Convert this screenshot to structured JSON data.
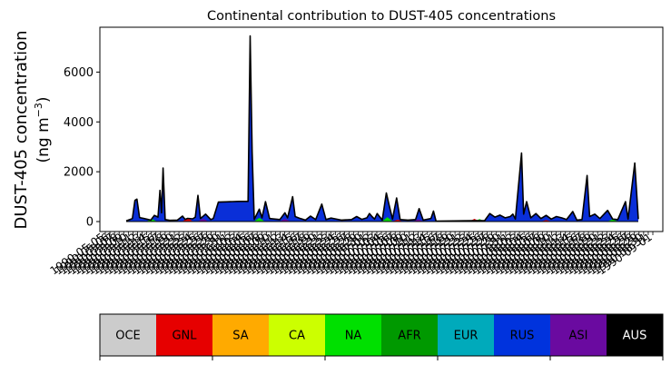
{
  "chart_data": [
    {
      "type": "area",
      "title": "Continental contribution to DUST-405 concentrations",
      "ylabel_line1": "DUST-405 concentration",
      "ylabel_line2_prefix": "(ng m",
      "ylabel_line2_exp": "−3",
      "ylabel_line2_suffix": ")",
      "ylim": [
        -400,
        7800
      ],
      "y_ticks": [
        0,
        2000,
        4000,
        6000
      ],
      "y_tick_labels": [
        "0",
        "2000",
        "4000",
        "6000"
      ],
      "x_tick_count": 120,
      "x_tick_labels": [
        "1990-05-05",
        "1990-05-06",
        "1990-05-07",
        "1990-05-08",
        "1990-05-09",
        "1990-05-10",
        "1990-05-11",
        "1990-05-12",
        "1990-05-13",
        "1990-05-14",
        "1990-05-15",
        "1990-05-16",
        "1990-05-17",
        "1990-05-18",
        "1990-05-19",
        "1990-05-20",
        "1990-05-21",
        "1990-05-22",
        "1990-05-23",
        "1990-05-24",
        "1990-05-25",
        "1990-05-26",
        "1990-05-27",
        "1990-05-28",
        "1990-05-29",
        "1990-05-30",
        "1990-05-31",
        "1990-06-01",
        "1990-06-02",
        "1990-06-03",
        "1990-06-04",
        "1990-06-05",
        "1990-06-06",
        "1990-06-07",
        "1990-06-08",
        "1990-06-09",
        "1990-06-10",
        "1990-06-11",
        "1990-06-12",
        "1990-06-13",
        "1990-06-14",
        "1990-06-15",
        "1990-06-16",
        "1990-06-17",
        "1990-06-18",
        "1990-06-19",
        "1990-06-20",
        "1990-06-21",
        "1990-06-22",
        "1990-06-23",
        "1990-06-24",
        "1990-06-25",
        "1990-06-26",
        "1990-06-27",
        "1990-06-28",
        "1990-06-29",
        "1990-06-30",
        "1990-07-01",
        "1990-07-02",
        "1990-07-03",
        "1990-07-04",
        "1990-07-05",
        "1990-07-06",
        "1990-07-07",
        "1990-07-08",
        "1990-07-09",
        "1990-07-10",
        "1990-07-11",
        "1990-07-12",
        "1990-07-13",
        "1990-07-14",
        "1990-07-15",
        "1990-07-16",
        "1990-07-17",
        "1990-07-18",
        "1990-07-19",
        "1990-07-20",
        "1990-07-21",
        "1990-07-22",
        "1990-07-23",
        "1990-07-24",
        "1990-07-25",
        "1990-07-26",
        "1990-07-27",
        "1990-07-28",
        "1990-07-29",
        "1990-07-30",
        "1990-07-31",
        "1990-08-01",
        "1990-08-02",
        "1990-08-03",
        "1990-08-04",
        "1990-08-05",
        "1990-08-06",
        "1990-08-07",
        "1990-08-08",
        "1990-08-09",
        "1990-08-10",
        "1990-08-11",
        "1990-08-12",
        "1990-08-13",
        "1990-08-14",
        "1990-08-15",
        "1990-08-16",
        "1990-08-17",
        "1990-08-18",
        "1990-08-19",
        "1990-08-20",
        "1990-08-21",
        "1990-08-22",
        "1990-08-23",
        "1990-08-24",
        "1990-08-25",
        "1990-08-26",
        "1990-08-27",
        "1990-08-28",
        "1990-08-29",
        "1990-08-30",
        "1990-08-31",
        "1990-09-01"
      ],
      "grid": false,
      "peaks": [
        {
          "t": 0.0,
          "v": 30
        },
        {
          "t": 0.012,
          "v": 120
        },
        {
          "t": 0.017,
          "v": 850
        },
        {
          "t": 0.021,
          "v": 900
        },
        {
          "t": 0.026,
          "v": 160
        },
        {
          "t": 0.035,
          "v": 120
        },
        {
          "t": 0.048,
          "v": 60
        },
        {
          "t": 0.055,
          "v": 250
        },
        {
          "t": 0.062,
          "v": 180
        },
        {
          "t": 0.066,
          "v": 1250
        },
        {
          "t": 0.069,
          "v": 350
        },
        {
          "t": 0.072,
          "v": 2150
        },
        {
          "t": 0.076,
          "v": 80
        },
        {
          "t": 0.085,
          "v": 50
        },
        {
          "t": 0.1,
          "v": 60
        },
        {
          "t": 0.11,
          "v": 220
        },
        {
          "t": 0.115,
          "v": 90
        },
        {
          "t": 0.12,
          "v": 130
        },
        {
          "t": 0.13,
          "v": 110
        },
        {
          "t": 0.135,
          "v": 180
        },
        {
          "t": 0.14,
          "v": 1050
        },
        {
          "t": 0.145,
          "v": 120
        },
        {
          "t": 0.155,
          "v": 300
        },
        {
          "t": 0.165,
          "v": 80
        },
        {
          "t": 0.17,
          "v": 120
        },
        {
          "t": 0.18,
          "v": 780
        },
        {
          "t": 0.195,
          "v": 790
        },
        {
          "t": 0.22,
          "v": 810
        },
        {
          "t": 0.238,
          "v": 810
        },
        {
          "t": 0.242,
          "v": 7450
        },
        {
          "t": 0.246,
          "v": 2800
        },
        {
          "t": 0.25,
          "v": 90
        },
        {
          "t": 0.26,
          "v": 500
        },
        {
          "t": 0.265,
          "v": 150
        },
        {
          "t": 0.272,
          "v": 800
        },
        {
          "t": 0.28,
          "v": 120
        },
        {
          "t": 0.3,
          "v": 80
        },
        {
          "t": 0.31,
          "v": 350
        },
        {
          "t": 0.315,
          "v": 150
        },
        {
          "t": 0.325,
          "v": 1000
        },
        {
          "t": 0.33,
          "v": 200
        },
        {
          "t": 0.34,
          "v": 120
        },
        {
          "t": 0.35,
          "v": 60
        },
        {
          "t": 0.36,
          "v": 220
        },
        {
          "t": 0.37,
          "v": 80
        },
        {
          "t": 0.382,
          "v": 700
        },
        {
          "t": 0.39,
          "v": 80
        },
        {
          "t": 0.4,
          "v": 140
        },
        {
          "t": 0.42,
          "v": 60
        },
        {
          "t": 0.44,
          "v": 80
        },
        {
          "t": 0.45,
          "v": 200
        },
        {
          "t": 0.46,
          "v": 90
        },
        {
          "t": 0.47,
          "v": 150
        },
        {
          "t": 0.475,
          "v": 320
        },
        {
          "t": 0.48,
          "v": 200
        },
        {
          "t": 0.485,
          "v": 100
        },
        {
          "t": 0.49,
          "v": 320
        },
        {
          "t": 0.5,
          "v": 60
        },
        {
          "t": 0.508,
          "v": 1150
        },
        {
          "t": 0.513,
          "v": 700
        },
        {
          "t": 0.52,
          "v": 100
        },
        {
          "t": 0.528,
          "v": 950
        },
        {
          "t": 0.535,
          "v": 80
        },
        {
          "t": 0.55,
          "v": 60
        },
        {
          "t": 0.565,
          "v": 80
        },
        {
          "t": 0.572,
          "v": 520
        },
        {
          "t": 0.58,
          "v": 60
        },
        {
          "t": 0.595,
          "v": 120
        },
        {
          "t": 0.6,
          "v": 420
        },
        {
          "t": 0.605,
          "v": 20
        },
        {
          "t": 0.7,
          "v": 40
        },
        {
          "t": 0.71,
          "v": 320
        },
        {
          "t": 0.72,
          "v": 180
        },
        {
          "t": 0.73,
          "v": 260
        },
        {
          "t": 0.74,
          "v": 150
        },
        {
          "t": 0.75,
          "v": 200
        },
        {
          "t": 0.755,
          "v": 300
        },
        {
          "t": 0.76,
          "v": 100
        },
        {
          "t": 0.772,
          "v": 2750
        },
        {
          "t": 0.776,
          "v": 300
        },
        {
          "t": 0.782,
          "v": 800
        },
        {
          "t": 0.79,
          "v": 150
        },
        {
          "t": 0.8,
          "v": 320
        },
        {
          "t": 0.81,
          "v": 120
        },
        {
          "t": 0.82,
          "v": 250
        },
        {
          "t": 0.83,
          "v": 100
        },
        {
          "t": 0.84,
          "v": 200
        },
        {
          "t": 0.85,
          "v": 150
        },
        {
          "t": 0.86,
          "v": 80
        },
        {
          "t": 0.872,
          "v": 400
        },
        {
          "t": 0.88,
          "v": 60
        },
        {
          "t": 0.89,
          "v": 80
        },
        {
          "t": 0.9,
          "v": 1850
        },
        {
          "t": 0.905,
          "v": 200
        },
        {
          "t": 0.915,
          "v": 300
        },
        {
          "t": 0.925,
          "v": 120
        },
        {
          "t": 0.94,
          "v": 450
        },
        {
          "t": 0.95,
          "v": 100
        },
        {
          "t": 0.96,
          "v": 80
        },
        {
          "t": 0.975,
          "v": 800
        },
        {
          "t": 0.98,
          "v": 100
        },
        {
          "t": 0.993,
          "v": 2350
        },
        {
          "t": 1.0,
          "v": 100
        }
      ],
      "base_layers": [
        {
          "name": "GNL",
          "color": "#e60000",
          "spots": [
            {
              "t": 0.12,
              "v": 140
            },
            {
              "t": 0.53,
              "v": 80
            },
            {
              "t": 0.68,
              "v": 110
            },
            {
              "t": 0.82,
              "v": 60
            }
          ]
        },
        {
          "name": "NA",
          "color": "#00e000",
          "spots": [
            {
              "t": 0.05,
              "v": 100
            },
            {
              "t": 0.26,
              "v": 150
            },
            {
              "t": 0.51,
              "v": 180
            },
            {
              "t": 0.69,
              "v": 100
            },
            {
              "t": 0.95,
              "v": 90
            }
          ]
        },
        {
          "name": "ASI",
          "color": "#6a0aa0",
          "spots": [
            {
              "t": 0.15,
              "v": 120
            },
            {
              "t": 0.31,
              "v": 110
            },
            {
              "t": 0.57,
              "v": 90
            }
          ]
        }
      ]
    },
    {
      "type": "colorbar",
      "categories": [
        "OCE",
        "GNL",
        "SA",
        "CA",
        "NA",
        "AFR",
        "EUR",
        "RUS",
        "ASI",
        "AUS"
      ],
      "colors": [
        "#cccccc",
        "#e60000",
        "#ffaa00",
        "#ccff00",
        "#00e000",
        "#009900",
        "#00aabb",
        "#0033dd",
        "#6a0aa0",
        "#000000"
      ],
      "text_colors": [
        "#000000",
        "#000000",
        "#000000",
        "#000000",
        "#000000",
        "#000000",
        "#000000",
        "#000000",
        "#000000",
        "#ffffff"
      ],
      "major_tick_every": 2
    }
  ]
}
